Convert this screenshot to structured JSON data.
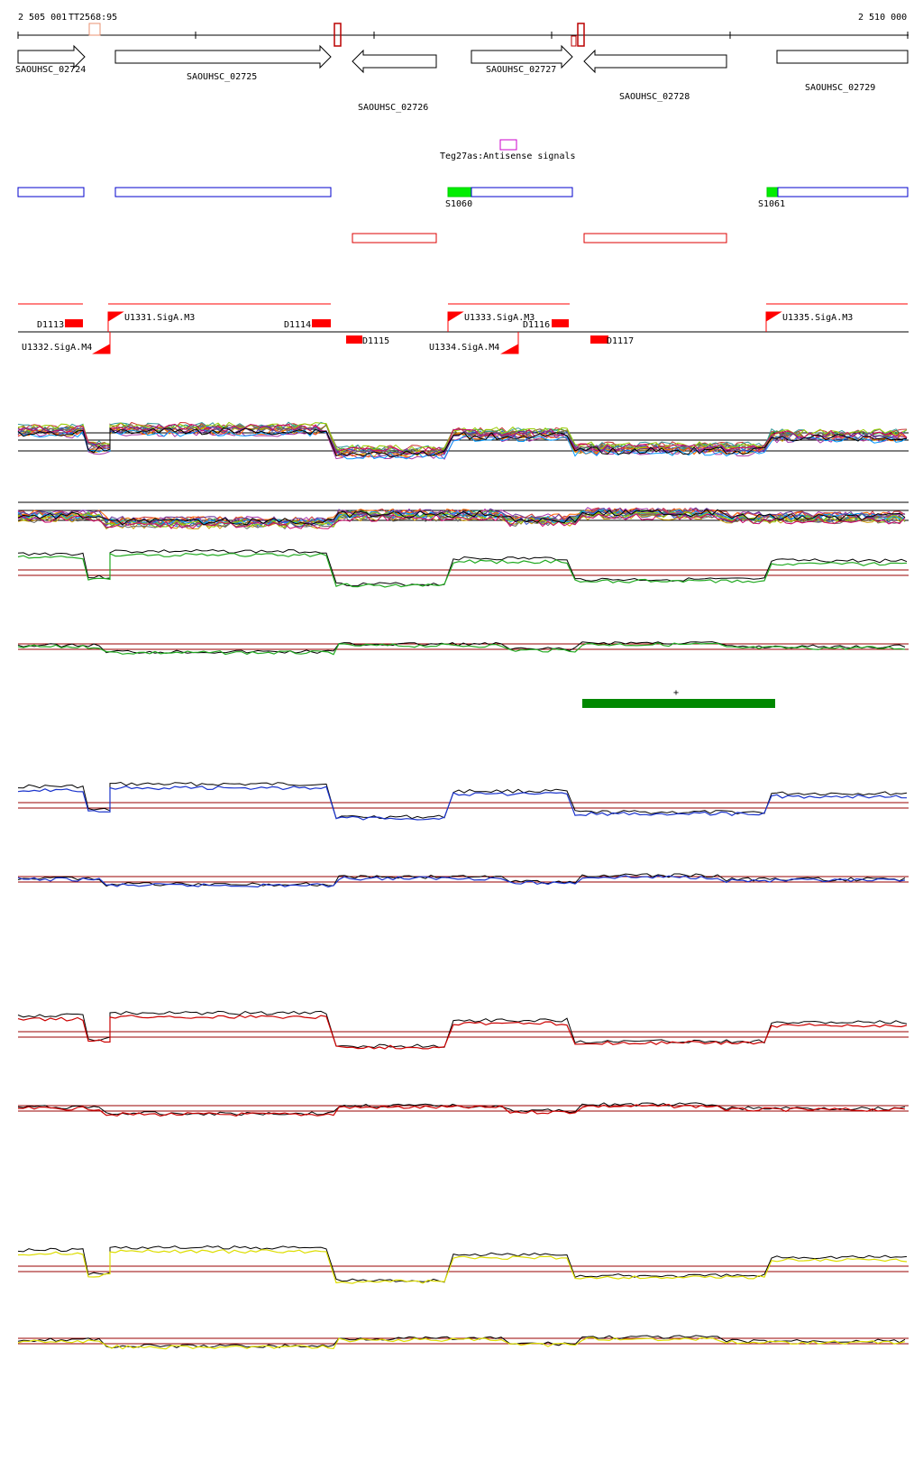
{
  "coordinates": {
    "start_label": "2 505 001",
    "end_label": "2 510 000",
    "marker_label": "TT2568:95"
  },
  "genes": [
    {
      "name": "SAOUHSC_02724",
      "strand": "+"
    },
    {
      "name": "SAOUHSC_02725",
      "strand": "+"
    },
    {
      "name": "SAOUHSC_02726",
      "strand": "-"
    },
    {
      "name": "SAOUHSC_02727",
      "strand": "+"
    },
    {
      "name": "SAOUHSC_02728",
      "strand": "-"
    },
    {
      "name": "SAOUHSC_02729",
      "strand": "+"
    }
  ],
  "antisense": {
    "label": "Teg27as:Antisense signals"
  },
  "segments": [
    {
      "label": "S1060"
    },
    {
      "label": "S1061"
    }
  ],
  "promoters": {
    "down": [
      "D1113",
      "D1114",
      "D1115",
      "D1116",
      "D1117"
    ],
    "up": [
      "U1331.SigA.M3",
      "U1332.SigA.M4",
      "U1333.SigA.M3",
      "U1334.SigA.M4",
      "U1335.SigA.M3"
    ]
  },
  "region_marker": {
    "label": "+"
  },
  "colors": {
    "gene_outline": "#000000",
    "plus_segment": "#0000cc",
    "minus_segment": "#dd0000",
    "promoter": "#ff0000",
    "antisense_box": "#cc00cc",
    "segment_start": "#00ee00",
    "region_bar": "#008800",
    "threshold_line": "#990000",
    "track_green": "#22aa22",
    "track_blue": "#1a33cc",
    "track_red": "#cc0000",
    "track_yellow": "#dddd00"
  },
  "tracks": [
    {
      "name": "condition-overlay-plus",
      "color": "multi"
    },
    {
      "name": "condition-overlay-minus",
      "color": "multi"
    },
    {
      "name": "green-plus",
      "color": "#22aa22"
    },
    {
      "name": "green-minus",
      "color": "#22aa22"
    },
    {
      "name": "blue-plus",
      "color": "#1a33cc"
    },
    {
      "name": "blue-minus",
      "color": "#1a33cc"
    },
    {
      "name": "red-plus",
      "color": "#cc0000"
    },
    {
      "name": "red-minus",
      "color": "#cc0000"
    },
    {
      "name": "yellow-plus",
      "color": "#dddd00"
    },
    {
      "name": "yellow-minus",
      "color": "#dddd00"
    }
  ]
}
